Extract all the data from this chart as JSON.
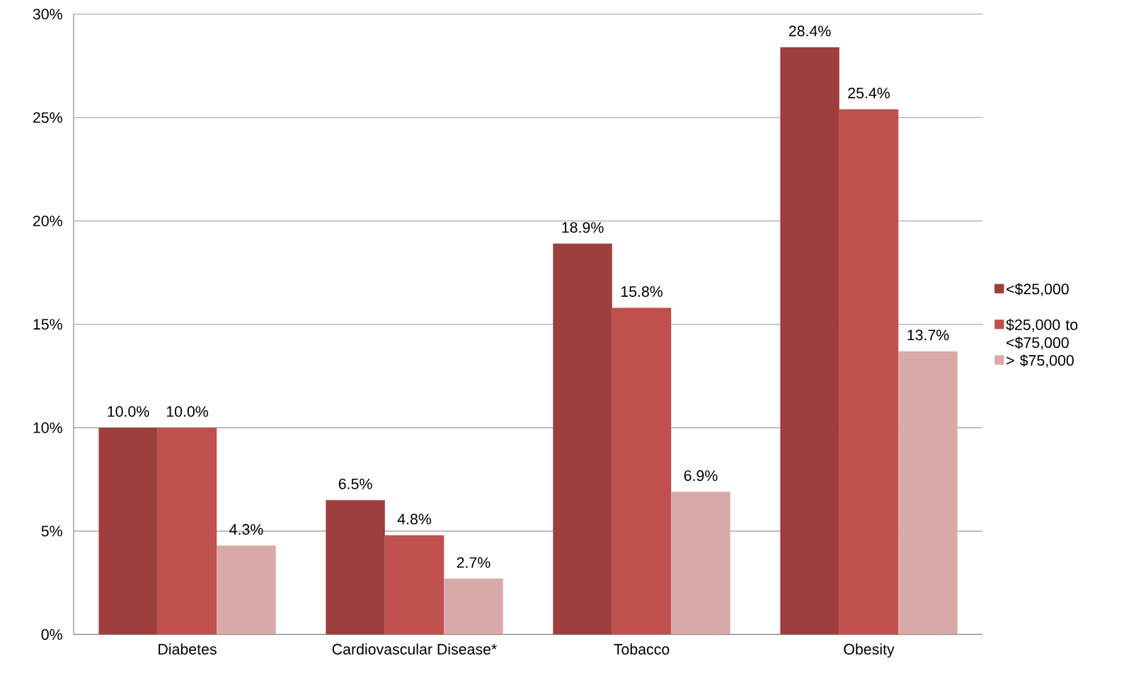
{
  "chart_data": {
    "type": "bar",
    "categories": [
      "Diabetes",
      "Cardiovascular Disease*",
      "Tobacco",
      "Obesity"
    ],
    "series": [
      {
        "name": "<$25,000",
        "color": "#9e3f3d",
        "values": [
          10.0,
          6.5,
          18.9,
          28.4
        ]
      },
      {
        "name": "$25,000 to <$75,000",
        "color": "#c0504d",
        "values": [
          10.0,
          4.8,
          15.8,
          25.4
        ]
      },
      {
        "name": "> $75,000",
        "color": "#d9a9a9",
        "values": [
          4.3,
          2.7,
          6.9,
          13.7
        ]
      }
    ],
    "value_labels": [
      [
        "10.0%",
        "6.5%",
        "18.9%",
        "28.4%"
      ],
      [
        "10.0%",
        "4.8%",
        "15.8%",
        "25.4%"
      ],
      [
        "4.3%",
        "2.7%",
        "6.9%",
        "13.7%"
      ]
    ],
    "ylim": [
      0,
      30
    ],
    "yticks": [
      {
        "value": 0,
        "label": "0%"
      },
      {
        "value": 5,
        "label": "5%"
      },
      {
        "value": 10,
        "label": "10%"
      },
      {
        "value": 15,
        "label": "15%"
      },
      {
        "value": 20,
        "label": "20%"
      },
      {
        "value": 25,
        "label": "25%"
      },
      {
        "value": 30,
        "label": "30%"
      }
    ],
    "grid": "y",
    "legend": "right"
  }
}
